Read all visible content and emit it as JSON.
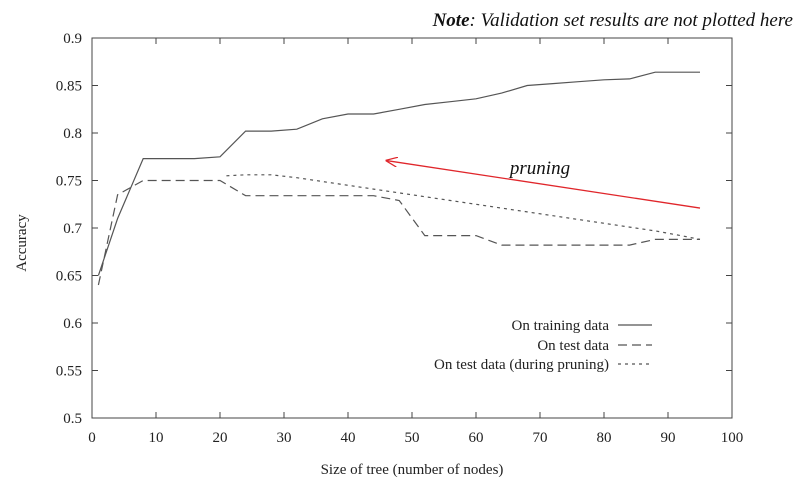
{
  "note": {
    "bold": "Note",
    "rest": ": Validation set results are not plotted here"
  },
  "chart_data": {
    "type": "line",
    "xlabel": "Size of tree (number of nodes)",
    "ylabel": "Accuracy",
    "xlim": [
      0,
      100
    ],
    "ylim": [
      0.5,
      0.9
    ],
    "x_ticks": [
      0,
      10,
      20,
      30,
      40,
      50,
      60,
      70,
      80,
      90,
      100
    ],
    "y_ticks": [
      0.5,
      0.55,
      0.6,
      0.65,
      0.7,
      0.75,
      0.8,
      0.85,
      0.9
    ],
    "x_tick_labels": [
      "0",
      "10",
      "20",
      "30",
      "40",
      "50",
      "60",
      "70",
      "80",
      "90",
      "100"
    ],
    "y_tick_labels": [
      "0.5",
      "0.55",
      "0.6",
      "0.65",
      "0.7",
      "0.75",
      "0.8",
      "0.85",
      "0.9"
    ],
    "grid": false,
    "legend_position": "bottom-right",
    "series": [
      {
        "name": "On training data",
        "style": "solid",
        "color": "#555555",
        "points": [
          [
            1,
            0.65
          ],
          [
            4,
            0.71
          ],
          [
            8,
            0.773
          ],
          [
            12,
            0.773
          ],
          [
            16,
            0.773
          ],
          [
            20,
            0.775
          ],
          [
            24,
            0.802
          ],
          [
            28,
            0.802
          ],
          [
            32,
            0.804
          ],
          [
            36,
            0.815
          ],
          [
            40,
            0.82
          ],
          [
            44,
            0.82
          ],
          [
            48,
            0.825
          ],
          [
            52,
            0.83
          ],
          [
            56,
            0.833
          ],
          [
            60,
            0.836
          ],
          [
            64,
            0.842
          ],
          [
            68,
            0.85
          ],
          [
            72,
            0.852
          ],
          [
            76,
            0.854
          ],
          [
            80,
            0.856
          ],
          [
            84,
            0.857
          ],
          [
            88,
            0.864
          ],
          [
            92,
            0.864
          ],
          [
            95,
            0.864
          ]
        ]
      },
      {
        "name": "On test data",
        "style": "dashed",
        "color": "#555555",
        "points": [
          [
            1,
            0.64
          ],
          [
            4,
            0.735
          ],
          [
            8,
            0.75
          ],
          [
            12,
            0.75
          ],
          [
            16,
            0.75
          ],
          [
            20,
            0.75
          ],
          [
            24,
            0.734
          ],
          [
            28,
            0.734
          ],
          [
            32,
            0.734
          ],
          [
            36,
            0.734
          ],
          [
            40,
            0.734
          ],
          [
            44,
            0.734
          ],
          [
            48,
            0.729
          ],
          [
            52,
            0.692
          ],
          [
            56,
            0.692
          ],
          [
            60,
            0.692
          ],
          [
            64,
            0.682
          ],
          [
            68,
            0.682
          ],
          [
            72,
            0.682
          ],
          [
            76,
            0.682
          ],
          [
            80,
            0.682
          ],
          [
            84,
            0.682
          ],
          [
            88,
            0.688
          ],
          [
            92,
            0.688
          ],
          [
            95,
            0.688
          ]
        ]
      },
      {
        "name": "On test data (during pruning)",
        "style": "dotted",
        "color": "#555555",
        "points": [
          [
            21,
            0.755
          ],
          [
            24,
            0.756
          ],
          [
            28,
            0.756
          ],
          [
            32,
            0.753
          ],
          [
            36,
            0.749
          ],
          [
            40,
            0.745
          ],
          [
            44,
            0.741
          ],
          [
            48,
            0.737
          ],
          [
            52,
            0.733
          ],
          [
            56,
            0.729
          ],
          [
            60,
            0.725
          ],
          [
            64,
            0.721
          ],
          [
            68,
            0.717
          ],
          [
            72,
            0.713
          ],
          [
            76,
            0.709
          ],
          [
            80,
            0.705
          ],
          [
            84,
            0.701
          ],
          [
            88,
            0.697
          ],
          [
            92,
            0.692
          ],
          [
            95,
            0.688
          ]
        ]
      }
    ],
    "annotations": [
      {
        "text": "pruning",
        "arrow_color": "#e0262b",
        "arrow_from": [
          95,
          0.721
        ],
        "arrow_to": [
          46,
          0.771
        ],
        "label_at": [
          70,
          0.763
        ]
      }
    ]
  }
}
